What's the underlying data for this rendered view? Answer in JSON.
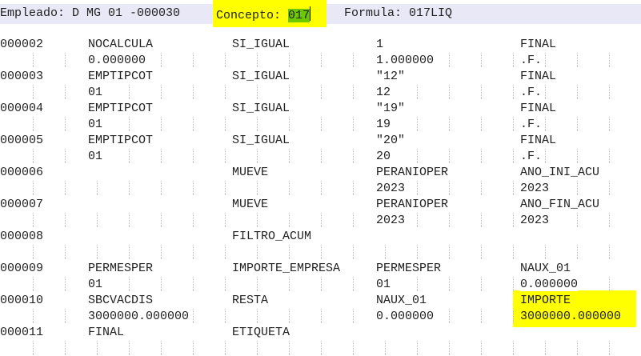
{
  "header": {
    "empleado": "Empleado: D MG 01 -000030",
    "concepto_label": "Concepto: ",
    "concepto_value": "017",
    "formula": "Formula: 017LIQ"
  },
  "colors": {
    "highlight": "#ffff00",
    "selection": "#6cc800",
    "header_bg": "#e8e8f6"
  },
  "rows": [
    {
      "num": "000002",
      "a": "NOCALCULA",
      "a2": "0.000000",
      "op": "SI_IGUAL",
      "b": "1",
      "b2": "1.000000",
      "r": "FINAL",
      "r2": ".F."
    },
    {
      "num": "000003",
      "a": "EMPTIPCOT",
      "a2": "01",
      "op": "SI_IGUAL",
      "b": "\"12\"",
      "b2": "12",
      "r": "FINAL",
      "r2": ".F."
    },
    {
      "num": "000004",
      "a": "EMPTIPCOT",
      "a2": "01",
      "op": "SI_IGUAL",
      "b": "\"19\"",
      "b2": "19",
      "r": "FINAL",
      "r2": ".F."
    },
    {
      "num": "000005",
      "a": "EMPTIPCOT",
      "a2": "01",
      "op": "SI_IGUAL",
      "b": "\"20\"",
      "b2": "20",
      "r": "FINAL",
      "r2": ".F."
    },
    {
      "num": "000006",
      "a": "",
      "a2": "",
      "op": "MUEVE",
      "b": "PERANIOPER",
      "b2": "2023",
      "r": "ANO_INI_ACU",
      "r2": "2023"
    },
    {
      "num": "000007",
      "a": "",
      "a2": "",
      "op": "MUEVE",
      "b": "PERANIOPER",
      "b2": "2023",
      "r": "ANO_FIN_ACU",
      "r2": "2023"
    },
    {
      "num": "000008",
      "a": "",
      "a2": "",
      "op": "FILTRO_ACUM",
      "b": "",
      "b2": "",
      "r": "",
      "r2": ""
    },
    {
      "num": "000009",
      "a": "PERMESPER",
      "a2": "01",
      "op": "IMPORTE_EMPRESA",
      "b": "PERMESPER",
      "b2": "01",
      "r": "NAUX_01",
      "r2": "0.000000"
    },
    {
      "num": "000010",
      "a": "SBCVACDIS",
      "a2": "3000000.000000",
      "op": "RESTA",
      "b": "NAUX_01",
      "b2": "0.000000",
      "r": "IMPORTE",
      "r2": "3000000.000000"
    },
    {
      "num": "000011",
      "a": "FINAL",
      "a2": "",
      "op": "ETIQUETA",
      "b": "",
      "b2": "",
      "r": "",
      "r2": ""
    }
  ]
}
